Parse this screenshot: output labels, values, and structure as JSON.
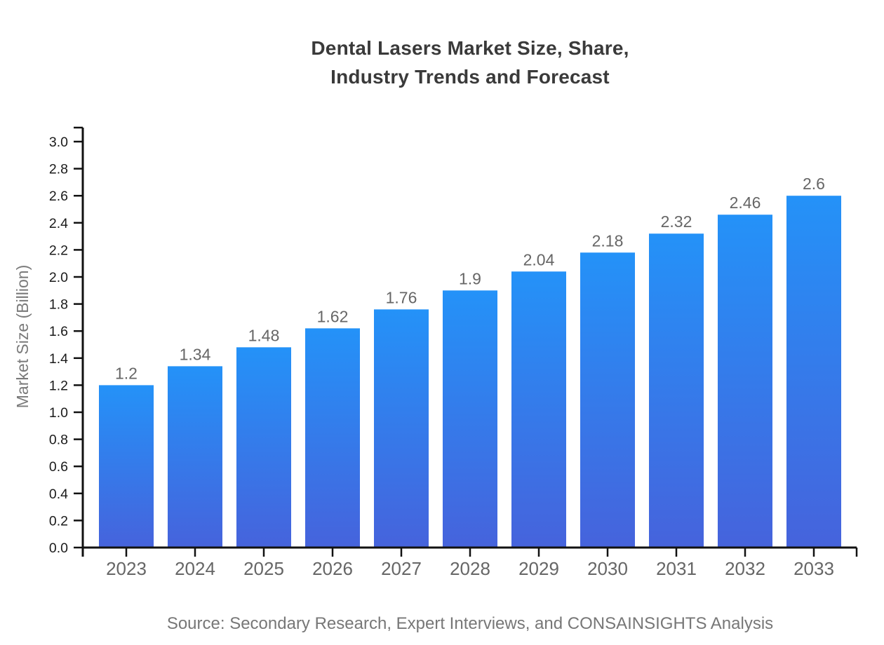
{
  "header": {
    "title_line1": "Dental Lasers Market Size, Share,",
    "title_line2": "Industry Trends and Forecast"
  },
  "chart_data": {
    "type": "bar",
    "title": "Dental Lasers Market Size, Share, Industry Trends and Forecast",
    "categories": [
      "2023",
      "2024",
      "2025",
      "2026",
      "2027",
      "2028",
      "2029",
      "2030",
      "2031",
      "2032",
      "2033"
    ],
    "values": [
      1.2,
      1.34,
      1.48,
      1.62,
      1.76,
      1.9,
      2.04,
      2.18,
      2.32,
      2.46,
      2.6
    ],
    "xlabel": "",
    "ylabel": "Market Size (Billion)",
    "ylim": [
      0.0,
      3.0
    ],
    "ytick_step": 0.2,
    "grid": false,
    "legend": false,
    "value_labels_shown": true,
    "style": {
      "bar_gradient_top": "#2492f8",
      "bar_gradient_bottom": "#4663dc",
      "axis_color": "#111111",
      "ytick_label_color": "#1a1a1a",
      "xtick_label_color": "#666666",
      "value_label_color": "#666666",
      "title_color": "#3a3a3a",
      "ylabel_color": "#7a7a7a",
      "source_color": "#777777",
      "background": "#ffffff"
    }
  },
  "footer": {
    "source": "Source: Secondary Research, Expert Interviews, and CONSAINSIGHTS Analysis"
  }
}
